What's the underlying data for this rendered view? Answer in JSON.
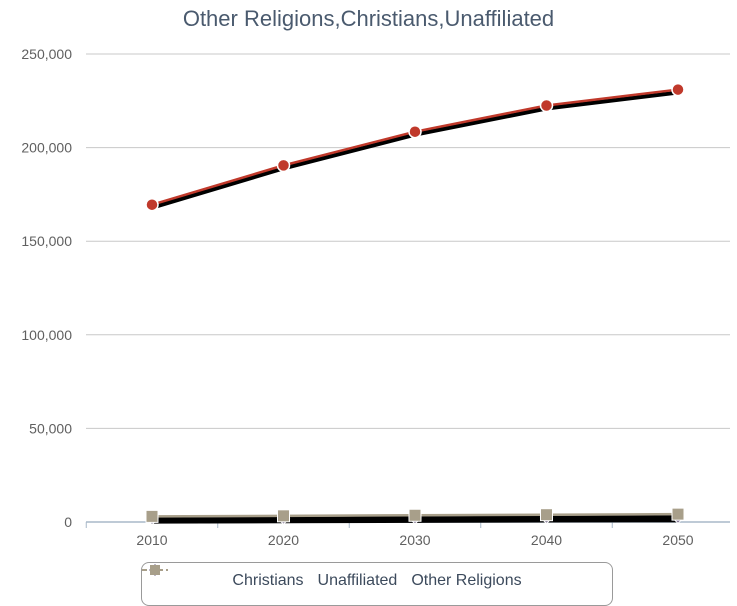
{
  "chart_data": {
    "type": "line",
    "title": "Other Religions,Christians,Unaffiliated",
    "xlabel": "",
    "ylabel": "",
    "x": [
      "2010",
      "2020",
      "2030",
      "2040",
      "2050"
    ],
    "yticks": [
      "0",
      "50,000",
      "100,000",
      "150,000",
      "200,000",
      "250,000"
    ],
    "ylim": [
      0,
      250000
    ],
    "grid": true,
    "legend_position": "bottom",
    "series": [
      {
        "name": "Christians",
        "values": [
          169500,
          190500,
          208500,
          222500,
          231000
        ],
        "color": "#c0392b",
        "marker": "circle"
      },
      {
        "name": "Unaffiliated",
        "values": [
          1800,
          2000,
          2200,
          2400,
          2500
        ],
        "color": "#7f7391",
        "marker": "diamond"
      },
      {
        "name": "Other Religions",
        "values": [
          3000,
          3300,
          3600,
          3900,
          4200
        ],
        "color": "#a89f8a",
        "marker": "square"
      }
    ]
  }
}
